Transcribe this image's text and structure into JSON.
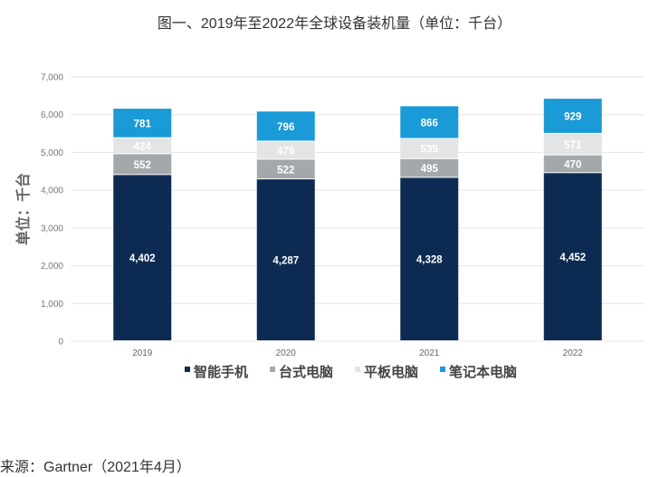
{
  "chart_data": {
    "type": "bar",
    "stacked": true,
    "title": "图一、2019年至2022年全球设备装机量（单位：千台）",
    "ylabel": "单位：千台",
    "xlabel": "",
    "ylim": [
      0,
      7000
    ],
    "yticks": [
      0,
      1000,
      2000,
      3000,
      4000,
      5000,
      6000,
      7000
    ],
    "ytick_labels": [
      "0",
      "1,000",
      "2,000",
      "3,000",
      "4,000",
      "5,000",
      "6,000",
      "7,000"
    ],
    "grid": true,
    "legend_position": "bottom",
    "categories": [
      "2019",
      "2020",
      "2021",
      "2022"
    ],
    "series": [
      {
        "name": "智能手机",
        "color": "#0d2a52",
        "label_color": "#ffffff",
        "values": [
          4402,
          4287,
          4328,
          4452
        ],
        "labels": [
          "4,402",
          "4,287",
          "4,328",
          "4,452"
        ]
      },
      {
        "name": "台式电脑",
        "color": "#a3a8ab",
        "label_color": "#ffffff",
        "values": [
          552,
          522,
          495,
          470
        ],
        "labels": [
          "552",
          "522",
          "495",
          "470"
        ]
      },
      {
        "name": "平板电脑",
        "color": "#e3e4e5",
        "label_color": "#ffffff",
        "values": [
          424,
          479,
          535,
          571
        ],
        "labels": [
          "424",
          "479",
          "535",
          "571"
        ]
      },
      {
        "name": "笔记本电脑",
        "color": "#1a9ad6",
        "label_color": "#ffffff",
        "values": [
          781,
          796,
          866,
          929
        ],
        "labels": [
          "781",
          "796",
          "866",
          "929"
        ]
      }
    ]
  },
  "source": "来源：Gartner（2021年4月）"
}
